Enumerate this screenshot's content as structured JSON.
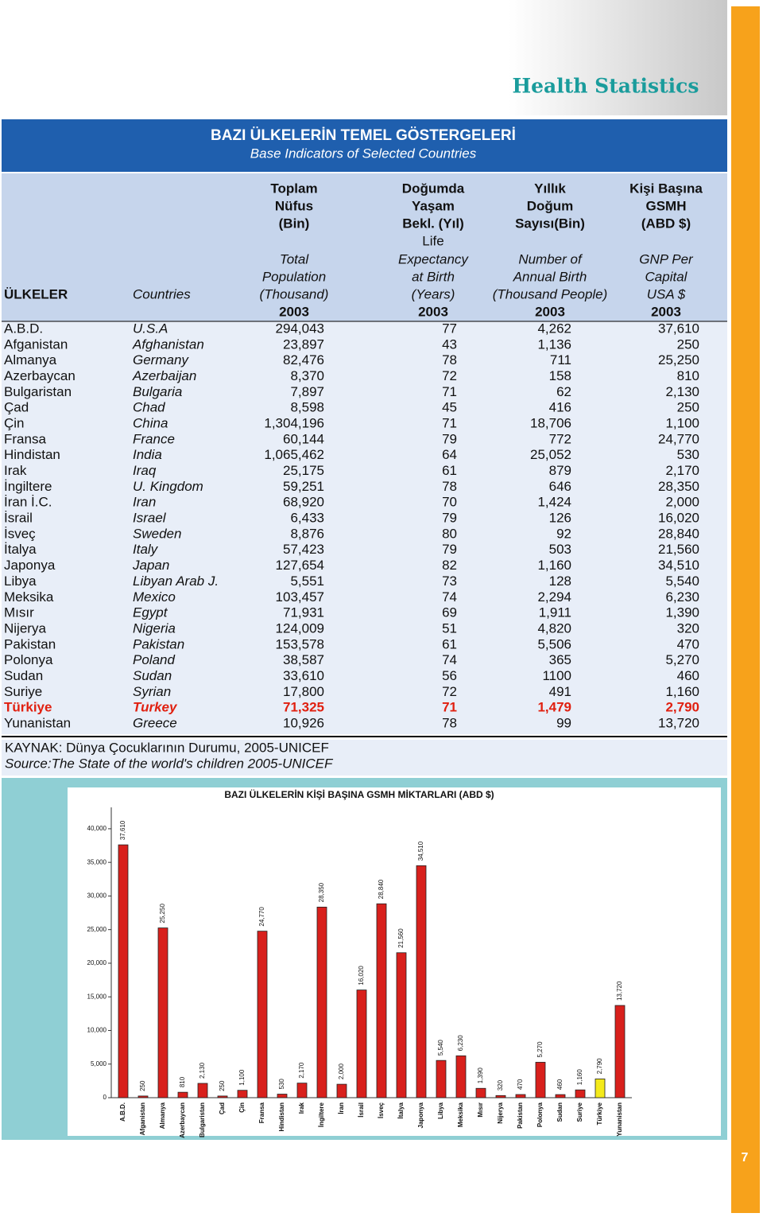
{
  "header": {
    "section_title": "Health Statistics",
    "title": "BAZI ÜLKELERİN  TEMEL GÖSTERGELERİ",
    "subtitle": "Base Indicators of Selected Countries"
  },
  "table": {
    "columns": [
      {
        "tr": [
          "ÜLKELER"
        ],
        "en": [],
        "year": null
      },
      {
        "tr": [],
        "en": [
          "Countries"
        ],
        "year": null
      },
      {
        "tr": [
          "Toplam",
          "Nüfus",
          "(Bin)"
        ],
        "en": [
          "Total",
          "Population",
          "(Thousand)"
        ],
        "year": "2003"
      },
      {
        "tr": [
          "Doğumda",
          "Yaşam",
          "Bekl. (Yıl)"
        ],
        "en": [
          "Life",
          "Expectancy",
          "at Birth",
          "(Years)"
        ],
        "year": "2003"
      },
      {
        "tr": [
          "Yıllık",
          "Doğum",
          "Sayısı(Bin)"
        ],
        "en": [
          "Number of",
          "Annual Birth",
          "(Thousand People)"
        ],
        "year": "2003"
      },
      {
        "tr": [
          "Kişi Başına",
          "GSMH",
          "(ABD $)"
        ],
        "en": [
          "GNP Per",
          "Capital",
          "USA $"
        ],
        "year": "2003"
      }
    ],
    "rows": [
      [
        "A.B.D.",
        "U.S.A",
        "294,043",
        "77",
        "4,262",
        "37,610"
      ],
      [
        "Afganistan",
        "Afghanistan",
        "23,897",
        "43",
        "1,136",
        "250"
      ],
      [
        "Almanya",
        "Germany",
        "82,476",
        "78",
        "711",
        "25,250"
      ],
      [
        "Azerbaycan",
        "Azerbaijan",
        "8,370",
        "72",
        "158",
        "810"
      ],
      [
        "Bulgaristan",
        "Bulgaria",
        "7,897",
        "71",
        "62",
        "2,130"
      ],
      [
        "Çad",
        "Chad",
        "8,598",
        "45",
        "416",
        "250"
      ],
      [
        "Çin",
        "China",
        "1,304,196",
        "71",
        "18,706",
        "1,100"
      ],
      [
        "Fransa",
        "France",
        "60,144",
        "79",
        "772",
        "24,770"
      ],
      [
        "Hindistan",
        "India",
        "1,065,462",
        "64",
        "25,052",
        "530"
      ],
      [
        "Irak",
        "Iraq",
        "25,175",
        "61",
        "879",
        "2,170"
      ],
      [
        "İngiltere",
        "U. Kingdom",
        "59,251",
        "78",
        "646",
        "28,350"
      ],
      [
        "İran İ.C.",
        "Iran",
        "68,920",
        "70",
        "1,424",
        "2,000"
      ],
      [
        "İsrail",
        "Israel",
        "6,433",
        "79",
        "126",
        "16,020"
      ],
      [
        "İsveç",
        "Sweden",
        "8,876",
        "80",
        "92",
        "28,840"
      ],
      [
        "İtalya",
        "Italy",
        "57,423",
        "79",
        "503",
        "21,560"
      ],
      [
        "Japonya",
        "Japan",
        "127,654",
        "82",
        "1,160",
        "34,510"
      ],
      [
        "Libya",
        "Libyan Arab J.",
        "5,551",
        "73",
        "128",
        "5,540"
      ],
      [
        "Meksika",
        "Mexico",
        "103,457",
        "74",
        "2,294",
        "6,230"
      ],
      [
        "Mısır",
        "Egypt",
        "71,931",
        "69",
        "1,911",
        "1,390"
      ],
      [
        "Nijerya",
        "Nigeria",
        "124,009",
        "51",
        "4,820",
        "320"
      ],
      [
        "Pakistan",
        "Pakistan",
        "153,578",
        "61",
        "5,506",
        "470"
      ],
      [
        "Polonya",
        "Poland",
        "38,587",
        "74",
        "365",
        "5,270"
      ],
      [
        "Sudan",
        "Sudan",
        "33,610",
        "56",
        "1100",
        "460"
      ],
      [
        "Suriye",
        "Syrian",
        "17,800",
        "72",
        "491",
        "1,160"
      ],
      [
        "Türkiye",
        "Turkey",
        "71,325",
        "71",
        "1,479",
        "2,790"
      ],
      [
        "Yunanistan",
        "Greece",
        "10,926",
        "78",
        "99",
        "13,720"
      ]
    ]
  },
  "source": [
    "KAYNAK: Dünya Çocuklarının Durumu, 2005-UNICEF",
    "Source:The State of the world's children 2005-UNICEF"
  ],
  "chart_data": {
    "type": "bar",
    "title": "BAZI ÜLKELERİN KİŞİ BAŞINA GSMH MİKTARLARI (ABD $)",
    "categories": [
      "A.B.D.",
      "Afganistan",
      "Almanya",
      "Azerbaycan",
      "Bulgaristan",
      "Çad",
      "Çin",
      "Fransa",
      "Hindistan",
      "Irak",
      "İngiltere",
      "İran",
      "İsrail",
      "İsveç",
      "İtalya",
      "Japonya",
      "Libya",
      "Meksika",
      "Mısır",
      "Nijerya",
      "Pakistan",
      "Polonya",
      "Sudan",
      "Suriye",
      "Türkiye",
      "Yunanistan"
    ],
    "values": [
      37610,
      250,
      25250,
      810,
      2130,
      250,
      1100,
      24770,
      530,
      2170,
      28350,
      2000,
      16020,
      28840,
      21560,
      34510,
      5540,
      6230,
      1390,
      320,
      470,
      5270,
      460,
      1160,
      2790,
      13720
    ],
    "value_labels": [
      "37,610",
      "250",
      "25,250",
      "810",
      "2,130",
      "250",
      "1,100",
      "24,770",
      "530",
      "2,170",
      "28,350",
      "2,000",
      "16,020",
      "28,840",
      "21,560",
      "34,510",
      "5,540",
      "6,230",
      "1,390",
      "320",
      "470",
      "5,270",
      "460",
      "1,160",
      "2,790",
      "13,720"
    ],
    "colors": [
      "#d8201c",
      "#d8201c",
      "#d8201c",
      "#d8201c",
      "#d8201c",
      "#d8201c",
      "#d8201c",
      "#d8201c",
      "#d8201c",
      "#d8201c",
      "#d8201c",
      "#d8201c",
      "#d8201c",
      "#d8201c",
      "#d8201c",
      "#d8201c",
      "#d8201c",
      "#d8201c",
      "#d8201c",
      "#d8201c",
      "#d8201c",
      "#d8201c",
      "#d8201c",
      "#d8201c",
      "#f4ea1a",
      "#d8201c"
    ],
    "ylim": [
      0,
      42000
    ],
    "yticks": [
      0,
      {
        "value": 5000,
        "label": "5,000"
      },
      {
        "value": 10000,
        "label": "10,000"
      },
      {
        "value": 15000,
        "label": "15,000"
      },
      {
        "value": 20000,
        "label": "20,000"
      },
      {
        "value": 25000,
        "label": "25,000"
      },
      {
        "value": 30000,
        "label": "30,000"
      },
      {
        "value": 35000,
        "label": "35,000"
      },
      {
        "value": 40000,
        "label": "40,000"
      }
    ]
  },
  "page_number": "7"
}
